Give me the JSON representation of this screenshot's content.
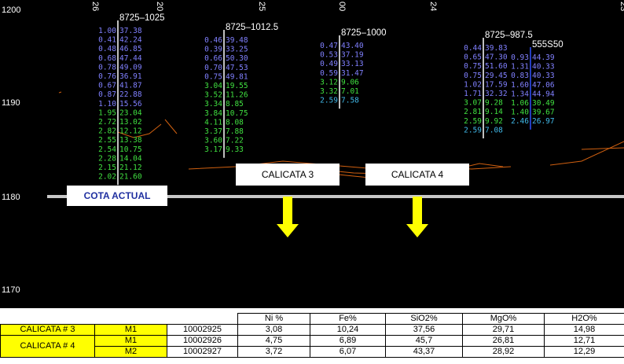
{
  "axis": {
    "labels": [
      "1200",
      "1190",
      "1180",
      "1170"
    ],
    "top_labels": [
      "26",
      "20",
      "25",
      "00",
      "24",
      "23"
    ]
  },
  "holes": [
    {
      "name": "8725–1025",
      "rows": [
        [
          "1.00",
          "37.38"
        ],
        [
          "0.41",
          "42.24"
        ],
        [
          "0.48",
          "46.85"
        ],
        [
          "0.68",
          "47.44"
        ],
        [
          "0.78",
          "49.09"
        ],
        [
          "0.76",
          "36.91"
        ],
        [
          "0.67",
          "41.87"
        ],
        [
          "0.87",
          "22.88"
        ],
        [
          "1.10",
          "15.56"
        ],
        [
          "1.95",
          "23.04"
        ],
        [
          "2.72",
          "13.02"
        ],
        [
          "2.82",
          "12.12"
        ],
        [
          "2.55",
          "13.38"
        ],
        [
          "2.54",
          "10.75"
        ],
        [
          "2.28",
          "14.04"
        ],
        [
          "2.15",
          "21.12"
        ],
        [
          "2.02",
          "21.60"
        ]
      ]
    },
    {
      "name": "8725–1012.5",
      "rows": [
        [
          "0.46",
          "39.48"
        ],
        [
          "0.39",
          "33.25"
        ],
        [
          "0.66",
          "50.30"
        ],
        [
          "0.70",
          "47.53"
        ],
        [
          "0.75",
          "49.81"
        ],
        [
          "3.04",
          "19.55"
        ],
        [
          "3.52",
          "11.26"
        ],
        [
          "3.34",
          "8.85"
        ],
        [
          "3.84",
          "10.75"
        ],
        [
          "4.11",
          "8.08"
        ],
        [
          "3.37",
          "7.88"
        ],
        [
          "3.60",
          "7.22"
        ],
        [
          "3.17",
          "9.33"
        ]
      ]
    },
    {
      "name": "8725–1000",
      "rows": [
        [
          "0.47",
          "43.40"
        ],
        [
          "0.53",
          "37.19"
        ],
        [
          "0.49",
          "33.13"
        ],
        [
          "0.59",
          "31.47"
        ],
        [
          "3.12",
          "9.06"
        ],
        [
          "3.32",
          "7.01"
        ],
        [
          "2.59",
          "7.58"
        ]
      ]
    },
    {
      "name": "8725–987.5",
      "rows": [
        [
          "0.44",
          "39.83"
        ],
        [
          "0.65",
          "47.30"
        ],
        [
          "0.75",
          "51.60"
        ],
        [
          "0.75",
          "29.45"
        ],
        [
          "1.02",
          "17.59"
        ],
        [
          "1.71",
          "32.32"
        ],
        [
          "3.07",
          "9.28"
        ],
        [
          "2.81",
          "9.14"
        ],
        [
          "2.59",
          "9.92"
        ],
        [
          "2.59",
          "7.08"
        ]
      ]
    },
    {
      "name": "555S50",
      "rows": [
        [
          "0.93",
          "44.39"
        ],
        [
          "1.31",
          "40.33"
        ],
        [
          "0.83",
          "40.33"
        ],
        [
          "1.60",
          "47.06"
        ],
        [
          "1.34",
          "44.94"
        ],
        [
          "1.06",
          "30.49"
        ],
        [
          "1.40",
          "39.67"
        ],
        [
          "2.46",
          "26.97"
        ]
      ]
    }
  ],
  "labels": {
    "cota": "COTA ACTUAL",
    "c3": "CALICATA 3",
    "c4": "CALICATA 4"
  },
  "table": {
    "header": [
      "Ni %",
      "Fe%",
      "SiO2%",
      "MgO%",
      "H2O%"
    ],
    "rows": [
      [
        "CALICATA # 3",
        "M1",
        "10002925",
        "3,08",
        "10,24",
        "37,56",
        "29,71",
        "14,98"
      ],
      [
        "CALICATA # 4",
        "M1",
        "10002926",
        "4,75",
        "6,89",
        "45,7",
        "26,81",
        "12,71"
      ],
      [
        "",
        "M2",
        "10002927",
        "3,72",
        "6,07",
        "43,37",
        "28,92",
        "12,29"
      ]
    ]
  }
}
